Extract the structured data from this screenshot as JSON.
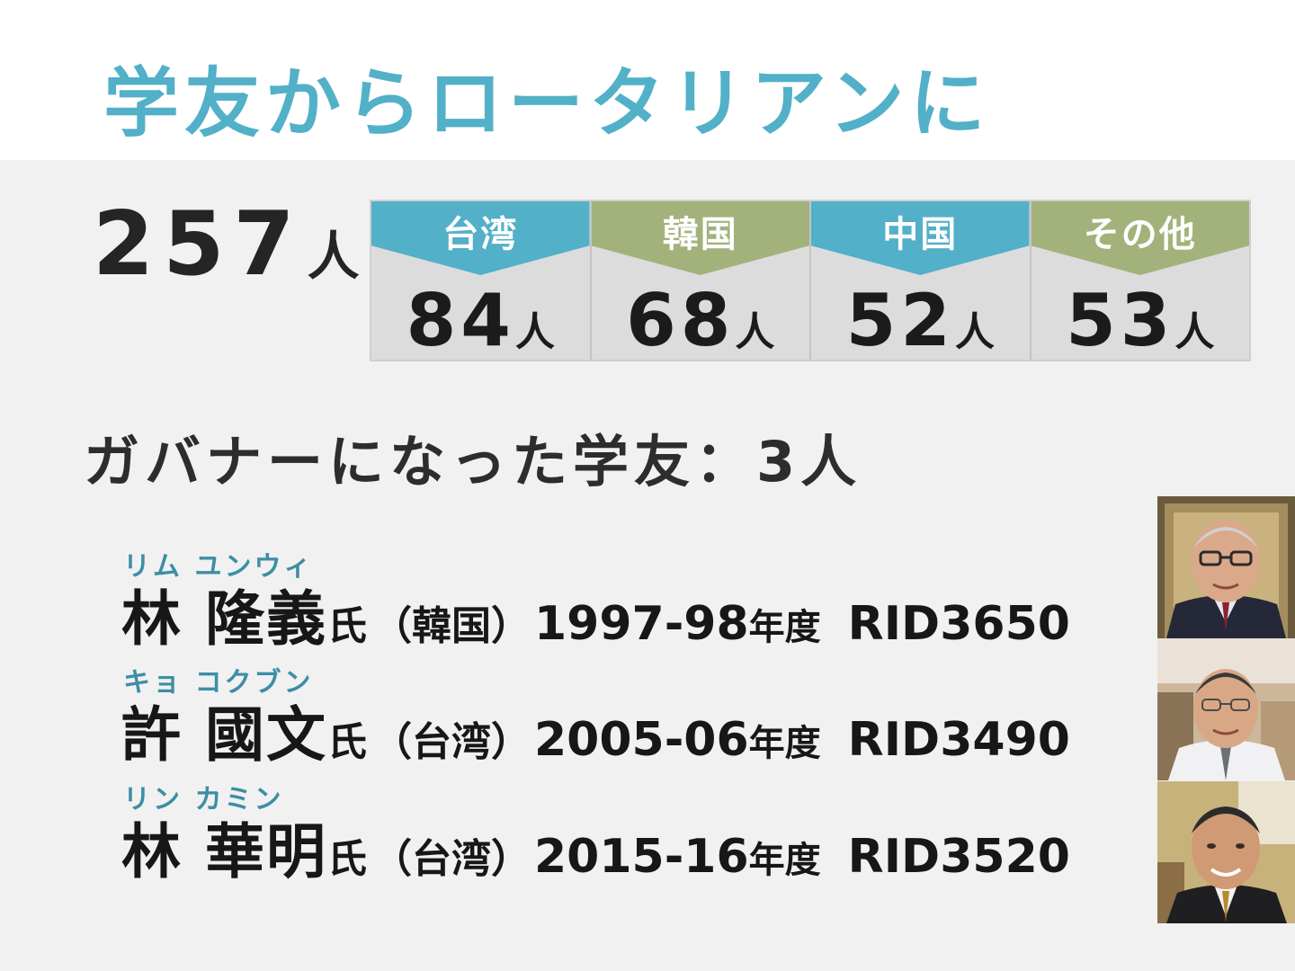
{
  "title": "学友からロータリアンに",
  "total": {
    "value": "257",
    "unit": "人"
  },
  "stats": [
    {
      "label": "台湾",
      "value": "84",
      "unit": "人",
      "color": "#52b0c8"
    },
    {
      "label": "韓国",
      "value": "68",
      "unit": "人",
      "color": "#a3b27b"
    },
    {
      "label": "中国",
      "value": "52",
      "unit": "人",
      "color": "#52b0c8"
    },
    {
      "label": "その他",
      "value": "53",
      "unit": "人",
      "color": "#a3b27b"
    }
  ],
  "governors_heading": "ガバナーになった学友：3人",
  "governors": [
    {
      "ruby": "リム ユンウィ",
      "name": "林 隆義",
      "honorific": "氏",
      "country": "（韓国）",
      "years": "1997-98",
      "year_unit": "年度",
      "rid": "RID3650"
    },
    {
      "ruby": "キョ コクブン",
      "name": "許 國文",
      "honorific": "氏",
      "country": "（台湾）",
      "years": "2005-06",
      "year_unit": "年度",
      "rid": "RID3490"
    },
    {
      "ruby": "リン カミン",
      "name": "林 華明",
      "honorific": "氏",
      "country": "（台湾）",
      "years": "2015-16",
      "year_unit": "年度",
      "rid": "RID3520"
    }
  ],
  "colors": {
    "accent_blue": "#52b0c8",
    "accent_green": "#a3b27b",
    "background": "#f1f1f1"
  }
}
